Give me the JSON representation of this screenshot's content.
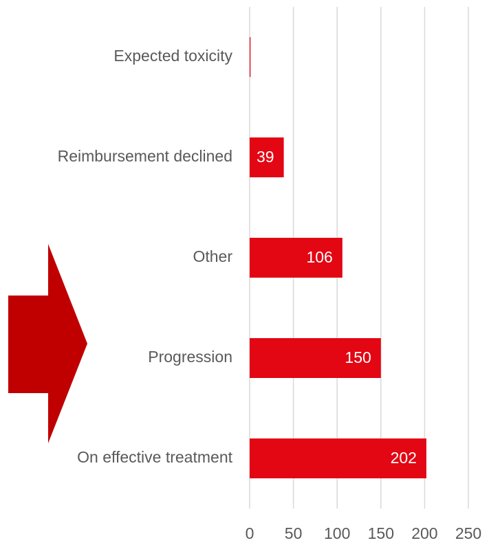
{
  "chart_data": {
    "type": "bar",
    "orientation": "horizontal",
    "categories": [
      "Expected toxicity",
      "Reimbursement declined",
      "Other",
      "Progression",
      "On effective treatment"
    ],
    "values": [
      1,
      39,
      106,
      150,
      202
    ],
    "color": "#e30613",
    "xlim": [
      0,
      250
    ],
    "xticks": [
      0,
      50,
      100,
      150,
      200,
      250
    ],
    "grid": true,
    "data_labels": true
  }
}
